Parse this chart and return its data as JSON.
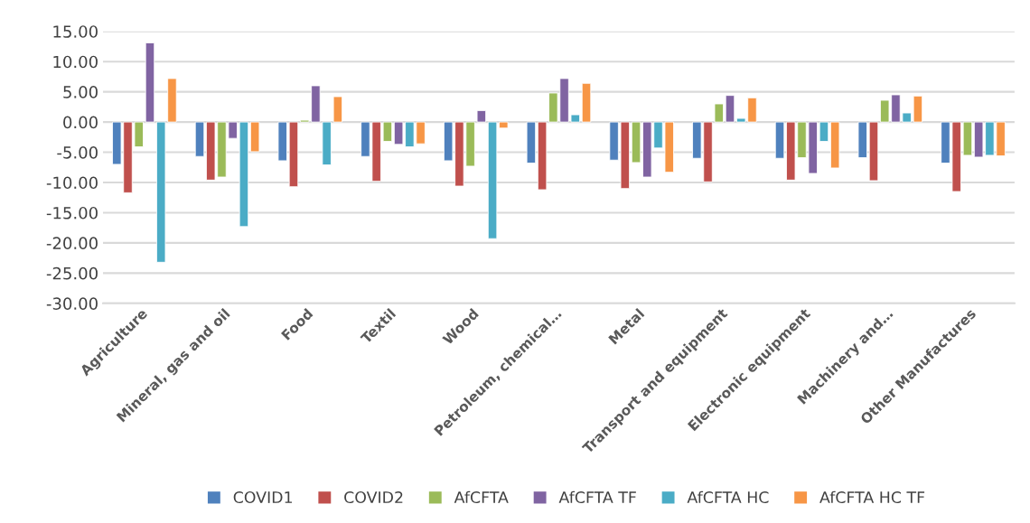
{
  "chart_data": {
    "type": "bar",
    "categories": [
      "Agriculture",
      "Mineral, gas and oil",
      "Food",
      "Textil",
      "Wood",
      "Petroleum, chemical…",
      "Metal",
      "Transport and equipment",
      "Electronic equipment",
      "Machinery and…",
      "Other Manufactures"
    ],
    "series": [
      {
        "name": "COVID1",
        "color": "#4f81bd",
        "values": [
          -7.0,
          -5.7,
          -6.4,
          -5.7,
          -6.4,
          -6.8,
          -6.3,
          -6.0,
          -6.0,
          -5.9,
          -6.8
        ]
      },
      {
        "name": "COVID2",
        "color": "#c0504d",
        "values": [
          -11.7,
          -9.6,
          -10.7,
          -9.8,
          -10.6,
          -11.2,
          -11.0,
          -9.9,
          -9.6,
          -9.7,
          -11.5
        ]
      },
      {
        "name": "AfCFTA",
        "color": "#9bbb59",
        "values": [
          -4.1,
          -9.1,
          0.3,
          -3.2,
          -7.3,
          4.8,
          -6.7,
          3.0,
          -5.9,
          3.6,
          -5.5
        ]
      },
      {
        "name": "AfCFTA TF",
        "color": "#8064a2",
        "values": [
          13.1,
          -2.7,
          6.0,
          -3.7,
          1.9,
          7.2,
          -9.1,
          4.4,
          -8.5,
          4.5,
          -5.8
        ]
      },
      {
        "name": "AfCFTA HC",
        "color": "#4bacc6",
        "values": [
          -23.2,
          -17.3,
          -7.1,
          -4.1,
          -19.3,
          1.2,
          -4.3,
          0.6,
          -3.2,
          1.5,
          -5.5
        ]
      },
      {
        "name": "AfCFTA HC TF",
        "color": "#f79646",
        "values": [
          7.2,
          -4.9,
          4.2,
          -3.6,
          -1.0,
          6.4,
          -8.3,
          4.0,
          -7.6,
          4.3,
          -5.6
        ]
      }
    ],
    "ylim": [
      -30,
      15
    ],
    "yticks": [
      {
        "value": -30,
        "label": "-30.00"
      },
      {
        "value": -25,
        "label": "-25.00"
      },
      {
        "value": -20,
        "label": "-20.00"
      },
      {
        "value": -15,
        "label": "-15.00"
      },
      {
        "value": -10,
        "label": "-10.00"
      },
      {
        "value": -5,
        "label": "-5.00"
      },
      {
        "value": 0,
        "label": "0.00"
      },
      {
        "value": 5,
        "label": "5.00"
      },
      {
        "value": 10,
        "label": "10.00"
      },
      {
        "value": 15,
        "label": "15.00"
      }
    ],
    "grid": "y",
    "legend": "bottom"
  }
}
